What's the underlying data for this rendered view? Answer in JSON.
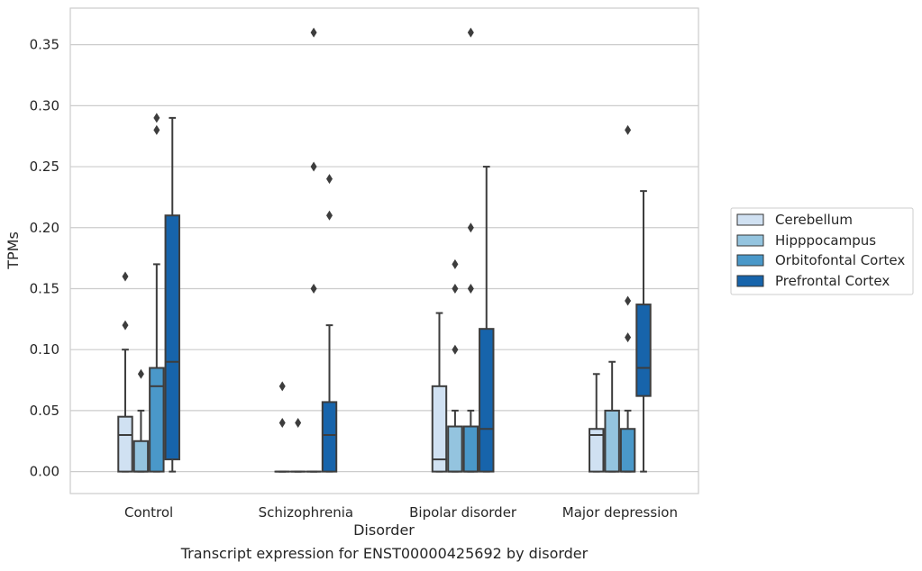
{
  "chart_data": {
    "type": "box",
    "title": "",
    "xlabel": "Disorder",
    "ylabel": "TPMs",
    "caption": "Transcript expression for ENST00000425692 by disorder",
    "categories": [
      "Control",
      "Schizophrenia",
      "Bipolar disorder",
      "Major depression"
    ],
    "y_ticks": [
      "0.00",
      "0.05",
      "0.10",
      "0.15",
      "0.20",
      "0.25",
      "0.30",
      "0.35"
    ],
    "ylim": [
      -0.018,
      0.38
    ],
    "grid": true,
    "legend_position": "right",
    "series": [
      {
        "name": "Cerebellum",
        "color": "#d0e1f2",
        "boxes": [
          {
            "whisker_low": 0.0,
            "q1": 0.0,
            "median": 0.03,
            "q3": 0.045,
            "whisker_high": 0.1,
            "outliers": [
              0.12,
              0.16
            ]
          },
          {
            "whisker_low": 0.0,
            "q1": 0.0,
            "median": 0.0,
            "q3": 0.0,
            "whisker_high": 0.0,
            "outliers": [
              0.04,
              0.07
            ]
          },
          {
            "whisker_low": 0.0,
            "q1": 0.0,
            "median": 0.01,
            "q3": 0.07,
            "whisker_high": 0.13,
            "outliers": []
          },
          {
            "whisker_low": 0.0,
            "q1": 0.0,
            "median": 0.03,
            "q3": 0.035,
            "whisker_high": 0.08,
            "outliers": []
          }
        ]
      },
      {
        "name": "Hipppocampus",
        "color": "#94c4df",
        "boxes": [
          {
            "whisker_low": 0.0,
            "q1": 0.0,
            "median": 0.0,
            "q3": 0.025,
            "whisker_high": 0.05,
            "outliers": [
              0.08
            ]
          },
          {
            "whisker_low": 0.0,
            "q1": 0.0,
            "median": 0.0,
            "q3": 0.0,
            "whisker_high": 0.0,
            "outliers": [
              0.04
            ]
          },
          {
            "whisker_low": 0.0,
            "q1": 0.0,
            "median": 0.0,
            "q3": 0.037,
            "whisker_high": 0.05,
            "outliers": [
              0.1,
              0.15,
              0.17
            ]
          },
          {
            "whisker_low": 0.0,
            "q1": 0.0,
            "median": 0.0,
            "q3": 0.05,
            "whisker_high": 0.09,
            "outliers": []
          }
        ]
      },
      {
        "name": "Orbitofontal Cortex",
        "color": "#4a98c9",
        "boxes": [
          {
            "whisker_low": 0.0,
            "q1": 0.0,
            "median": 0.07,
            "q3": 0.085,
            "whisker_high": 0.17,
            "outliers": [
              0.28,
              0.29
            ]
          },
          {
            "whisker_low": 0.0,
            "q1": 0.0,
            "median": 0.0,
            "q3": 0.0,
            "whisker_high": 0.0,
            "outliers": [
              0.15,
              0.25,
              0.36
            ]
          },
          {
            "whisker_low": 0.0,
            "q1": 0.0,
            "median": 0.0,
            "q3": 0.037,
            "whisker_high": 0.05,
            "outliers": [
              0.15,
              0.2,
              0.36
            ]
          },
          {
            "whisker_low": 0.0,
            "q1": 0.0,
            "median": 0.0,
            "q3": 0.035,
            "whisker_high": 0.05,
            "outliers": [
              0.11,
              0.14,
              0.28
            ]
          }
        ]
      },
      {
        "name": "Prefrontal Cortex",
        "color": "#1764ab",
        "boxes": [
          {
            "whisker_low": 0.0,
            "q1": 0.01,
            "median": 0.09,
            "q3": 0.21,
            "whisker_high": 0.29,
            "outliers": []
          },
          {
            "whisker_low": 0.0,
            "q1": 0.0,
            "median": 0.03,
            "q3": 0.057,
            "whisker_high": 0.12,
            "outliers": [
              0.21,
              0.24
            ]
          },
          {
            "whisker_low": 0.0,
            "q1": 0.0,
            "median": 0.035,
            "q3": 0.117,
            "whisker_high": 0.25,
            "outliers": []
          },
          {
            "whisker_low": 0.0,
            "q1": 0.062,
            "median": 0.085,
            "q3": 0.137,
            "whisker_high": 0.23,
            "outliers": []
          }
        ]
      }
    ]
  }
}
